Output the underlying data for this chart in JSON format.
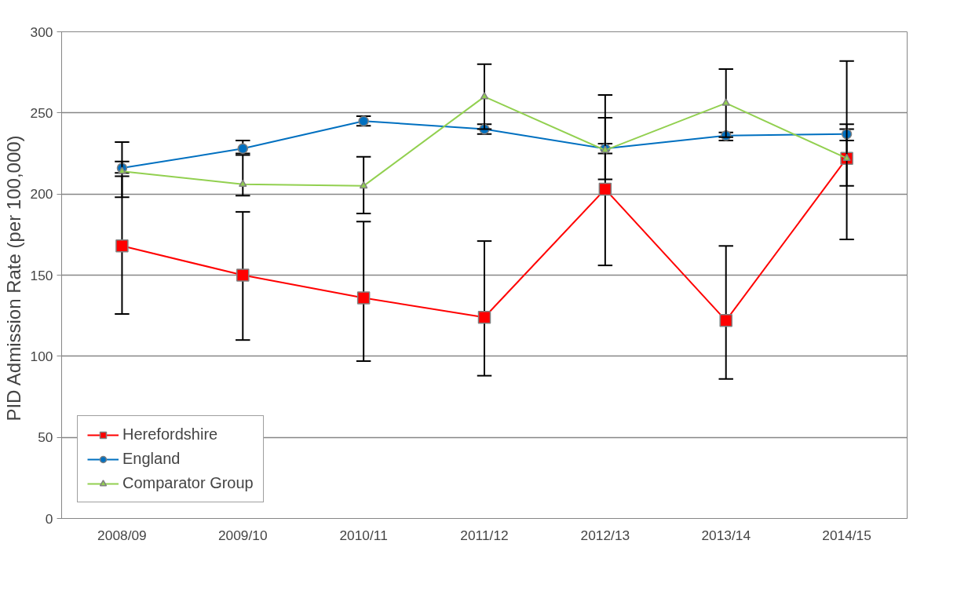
{
  "chart_data": {
    "type": "line",
    "ylabel": "PID Admission Rate  (per 100,000)",
    "categories": [
      "2008/09",
      "2009/10",
      "2010/11",
      "2011/12",
      "2012/13",
      "2013/14",
      "2014/15"
    ],
    "series": [
      {
        "name": "Herefordshire",
        "color": "#ff0000",
        "marker": "square",
        "values": [
          168,
          150,
          136,
          124,
          203,
          122,
          222
        ],
        "errors": [
          [
            126,
            211
          ],
          [
            110,
            189
          ],
          [
            97,
            183
          ],
          [
            88,
            171
          ],
          [
            156,
            247
          ],
          [
            86,
            168
          ],
          [
            172,
            282
          ]
        ]
      },
      {
        "name": "England",
        "color": "#0070c0",
        "marker": "circle",
        "values": [
          216,
          228,
          245,
          240,
          228,
          236,
          237
        ],
        "errors": [
          [
            213,
            220
          ],
          [
            225,
            233
          ],
          [
            242,
            248
          ],
          [
            237,
            243
          ],
          [
            225,
            231
          ],
          [
            233,
            238
          ],
          [
            233,
            240
          ]
        ]
      },
      {
        "name": "Comparator Group",
        "color": "#92d050",
        "marker": "triangle",
        "values": [
          214,
          206,
          205,
          260,
          227,
          256,
          222
        ],
        "errors": [
          [
            198,
            232
          ],
          [
            199,
            224
          ],
          [
            188,
            223
          ],
          [
            240,
            280
          ],
          [
            209,
            261
          ],
          [
            235,
            277
          ],
          [
            205,
            243
          ]
        ]
      }
    ],
    "ylim": [
      0,
      300
    ],
    "yticks": [
      0,
      50,
      100,
      150,
      200,
      250,
      300
    ],
    "grid": "y",
    "legend": "bottom left"
  }
}
